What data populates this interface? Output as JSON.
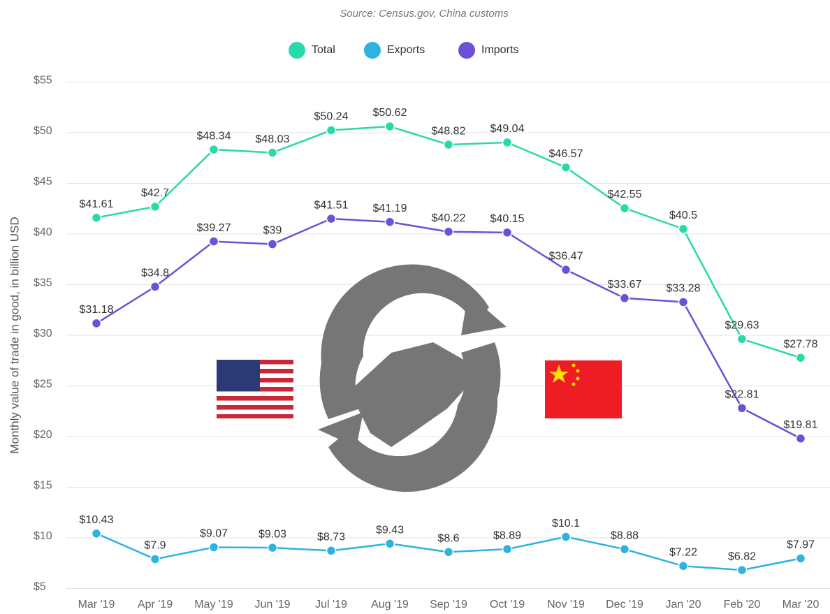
{
  "chart_data": {
    "type": "line",
    "subtitle": "Source: Census.gov, China customs",
    "y_label": "Monthly value of trade in good, in billion USD",
    "categories": [
      "Mar '19",
      "Apr '19",
      "May '19",
      "Jun '19",
      "Jul '19",
      "Aug '19",
      "Sep '19",
      "Oct '19",
      "Nov '19",
      "Dec '19",
      "Jan '20",
      "Feb '20",
      "Mar '20"
    ],
    "series": [
      {
        "name": "Total",
        "color": "#2ad9a9",
        "values": [
          41.61,
          42.7,
          48.34,
          48.03,
          50.24,
          50.62,
          48.82,
          49.04,
          46.57,
          42.55,
          40.5,
          29.63,
          27.78
        ],
        "value_labels": [
          "$41.61",
          "$42.7",
          "$48.34",
          "$48.03",
          "$50.24",
          "$50.62",
          "$48.82",
          "$49.04",
          "$46.57",
          "$42.55",
          "$40.5",
          "$29.63",
          "$27.78"
        ]
      },
      {
        "name": "Exports",
        "color": "#2cb3e0",
        "values": [
          10.43,
          7.9,
          9.07,
          9.03,
          8.73,
          9.43,
          8.6,
          8.89,
          10.1,
          8.88,
          7.22,
          6.82,
          7.97
        ],
        "value_labels": [
          "$10.43",
          "$7.9",
          "$9.07",
          "$9.03",
          "$8.73",
          "$9.43",
          "$8.6",
          "$8.89",
          "$10.1",
          "$8.88",
          "$7.22",
          "$6.82",
          "$7.97"
        ]
      },
      {
        "name": "Imports",
        "color": "#6d50d6",
        "values": [
          31.18,
          34.8,
          39.27,
          39,
          41.51,
          41.19,
          40.22,
          40.15,
          36.47,
          33.67,
          33.28,
          22.81,
          19.81
        ],
        "value_labels": [
          "$31.18",
          "$34.8",
          "$39.27",
          "$39",
          "$41.51",
          "$41.19",
          "$40.22",
          "$40.15",
          "$36.47",
          "$33.67",
          "$33.28",
          "$22.81",
          "$19.81"
        ]
      }
    ],
    "ylim": [
      5,
      55
    ],
    "yticks": [
      {
        "value": 5,
        "label": "$5"
      },
      {
        "value": 10,
        "label": "$10"
      },
      {
        "value": 15,
        "label": "$15"
      },
      {
        "value": 20,
        "label": "$20"
      },
      {
        "value": 25,
        "label": "$25"
      },
      {
        "value": 30,
        "label": "$30"
      },
      {
        "value": 35,
        "label": "$35"
      },
      {
        "value": 40,
        "label": "$40"
      },
      {
        "value": 45,
        "label": "$45"
      },
      {
        "value": 50,
        "label": "$50"
      },
      {
        "value": 55,
        "label": "$55"
      }
    ],
    "grid": true
  }
}
